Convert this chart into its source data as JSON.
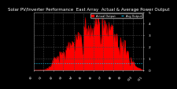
{
  "title": "Solar PV/Inverter Performance  East Array  Actual & Average Power Output",
  "bg_color": "#000000",
  "plot_bg_color": "#000000",
  "fill_color": "#ff0000",
  "line_color": "#ff0000",
  "avg_line_color": "#00ccff",
  "avg_line_style": "--",
  "avg_value": 0.62,
  "ylim": [
    0,
    5.0
  ],
  "ytick_vals": [
    0,
    1,
    2,
    3,
    4,
    5
  ],
  "ytick_labels": [
    "0",
    "1",
    "2",
    "3",
    "4",
    "5"
  ],
  "grid_color": "#444444",
  "grid_style": "--",
  "num_points": 150,
  "legend_actual": "Actual Output",
  "legend_avg": "Avg Output",
  "title_fontsize": 4.0,
  "tick_fontsize": 3.2,
  "title_color": "#ffffff",
  "tick_color": "#ffffff",
  "border_color": "#888888",
  "legend_actual_color": "#ff0000",
  "legend_avg_color": "#00ccff"
}
